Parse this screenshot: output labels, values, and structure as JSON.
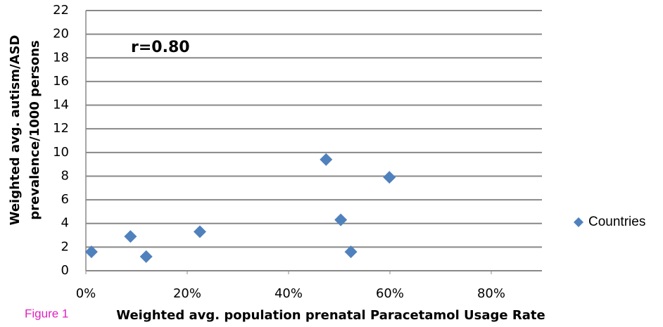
{
  "chart_data": {
    "type": "scatter",
    "caption": "Figure 1",
    "annotation": "r=0.80",
    "xlabel": "Weighted avg. population prenatal Paracetamol Usage Rate",
    "ylabel": [
      "Weighted avg. autism/ASD",
      "prevalence/1000 persons"
    ],
    "series": [
      {
        "name": "Countries",
        "color": "#4f81bd",
        "x": [
          1.1,
          8.8,
          11.9,
          22.5,
          47.4,
          50.3,
          52.3,
          59.9
        ],
        "values": [
          1.6,
          2.9,
          1.2,
          3.3,
          9.4,
          4.3,
          1.6,
          7.9
        ]
      }
    ],
    "xlim": [
      0,
      90
    ],
    "xticks": [
      {
        "value": 0,
        "label": "0%"
      },
      {
        "value": 20,
        "label": "20%"
      },
      {
        "value": 40,
        "label": "40%"
      },
      {
        "value": 60,
        "label": "60%"
      },
      {
        "value": 80,
        "label": "80%"
      }
    ],
    "ylim": [
      0,
      22
    ],
    "yticks": [
      0,
      2,
      4,
      6,
      8,
      10,
      12,
      14,
      16,
      18,
      20,
      22
    ],
    "grid": true,
    "legend": "right"
  }
}
